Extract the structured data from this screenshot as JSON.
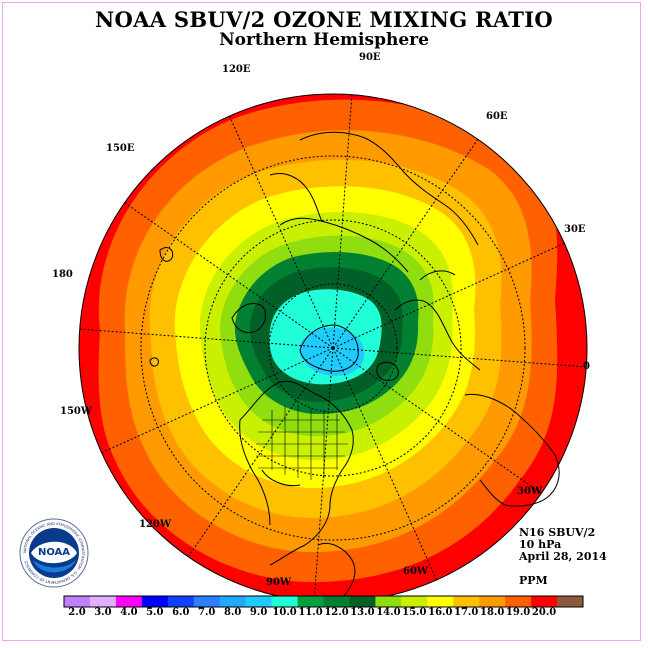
{
  "title": "NOAA SBUV/2 OZONE MIXING RATIO",
  "subtitle": "Northern Hemisphere",
  "logo_text": "NOAA",
  "logo_ring_text": "NATIONAL OCEANIC AND ATMOSPHERIC ADMINISTRATION · U.S. DEPARTMENT OF COMMERCE",
  "info": {
    "instrument": "N16 SBUV/2",
    "level": "10 hPa",
    "date": "April 28, 2014",
    "units": "PPM"
  },
  "longitude_labels": [
    "90E",
    "60E",
    "120E",
    "150E",
    "30E",
    "180",
    "0",
    "150W",
    "30W",
    "120W",
    "60W",
    "90W"
  ],
  "colorbar": {
    "labels": [
      "2.0",
      "3.0",
      "4.0",
      "5.0",
      "6.0",
      "7.0",
      "8.0",
      "9.0",
      "10.0",
      "11.0",
      "12.0",
      "13.0",
      "14.0",
      "15.0",
      "16.0",
      "17.0",
      "18.0",
      "19.0",
      "20.0"
    ],
    "colors": [
      "#c080ff",
      "#e0b0ff",
      "#ff00ff",
      "#0000ff",
      "#1040ff",
      "#2a80ff",
      "#22a8ff",
      "#20ccff",
      "#20ffd8",
      "#00a040",
      "#008030",
      "#006028",
      "#90dd10",
      "#c8f000",
      "#ffff00",
      "#ffc000",
      "#ff9a00",
      "#ff6000",
      "#ff0000",
      "#8b5a3c"
    ]
  },
  "contour_colors": {
    "ocean_outer": "#ff0000",
    "band_18": "#ff6000",
    "band_17": "#ff9a00",
    "band_16": "#ffc000",
    "band_15": "#ffff00",
    "band_14": "#c8f000",
    "band_13": "#90dd10",
    "band_12": "#008030",
    "band_11": "#006028",
    "band_10": "#20ffd8",
    "band_9": "#20ccff"
  }
}
